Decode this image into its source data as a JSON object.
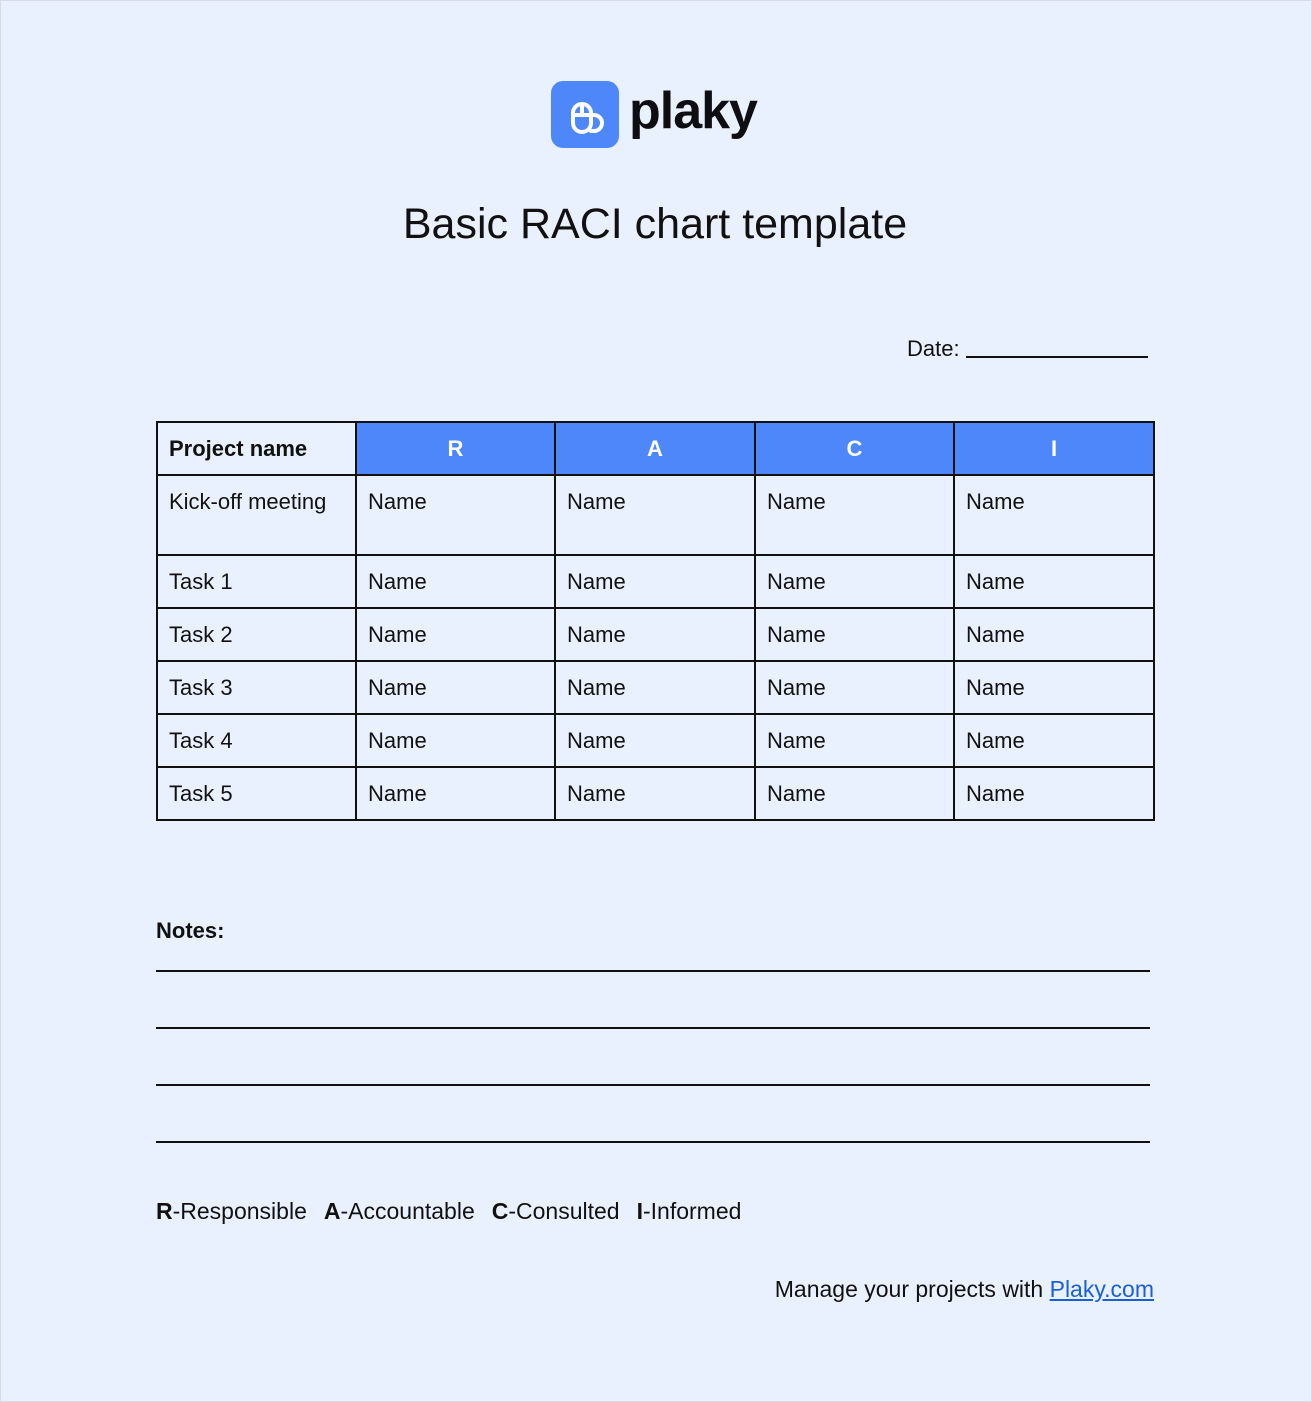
{
  "brand": {
    "name": "plaky",
    "color": "#4e87f9"
  },
  "title": "Basic RACI chart template",
  "date_label": "Date:",
  "table": {
    "headers": [
      "Project name",
      "R",
      "A",
      "C",
      "I"
    ],
    "rows": [
      [
        "Kick-off meeting",
        "Name",
        "Name",
        "Name",
        "Name"
      ],
      [
        "Task 1",
        "Name",
        "Name",
        "Name",
        "Name"
      ],
      [
        "Task 2",
        "Name",
        "Name",
        "Name",
        "Name"
      ],
      [
        "Task 3",
        "Name",
        "Name",
        "Name",
        "Name"
      ],
      [
        "Task 4",
        "Name",
        "Name",
        "Name",
        "Name"
      ],
      [
        "Task 5",
        "Name",
        "Name",
        "Name",
        "Name"
      ]
    ]
  },
  "notes_label": "Notes:",
  "legend": [
    {
      "letter": "R",
      "text": "-Responsible"
    },
    {
      "letter": "A",
      "text": "-Accountable"
    },
    {
      "letter": "C",
      "text": "-Consulted"
    },
    {
      "letter": "I",
      "text": "-Informed"
    }
  ],
  "footer": {
    "text": "Manage your projects with ",
    "link": "Plaky.com"
  }
}
